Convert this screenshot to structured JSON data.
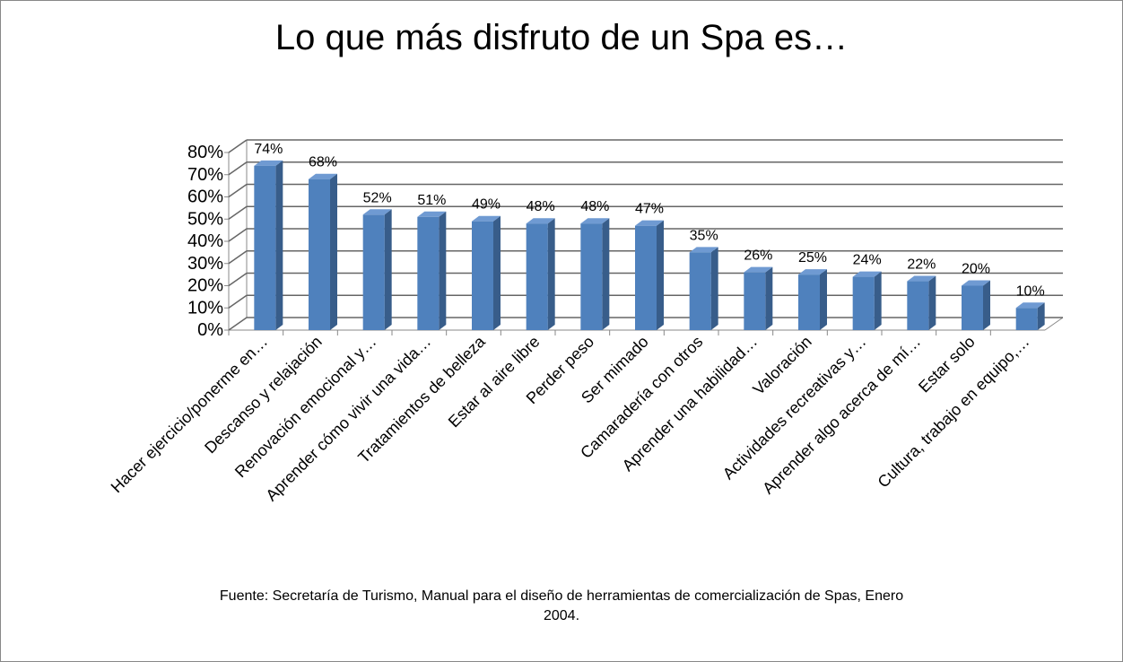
{
  "chart_data": {
    "type": "bar",
    "title": "Lo que más disfruto de un Spa es…",
    "categories": [
      "Hacer ejercicio/ponerme en…",
      "Descanso y relajación",
      "Renovación emocional y…",
      "Aprender cómo vivir una vida…",
      "Tratamientos de belleza",
      "Estar al aire libre",
      "Perder peso",
      "Ser mimado",
      "Camaradería con otros",
      "Aprender una habilidad…",
      "Valoración",
      "Actividades recreativas y…",
      "Aprender algo acerca de mí…",
      "Estar solo",
      "Cultura, trabajo en equipo,…"
    ],
    "values": [
      74,
      68,
      52,
      51,
      49,
      48,
      48,
      47,
      35,
      26,
      25,
      24,
      22,
      20,
      10
    ],
    "value_labels": [
      "74%",
      "68%",
      "52%",
      "51%",
      "49%",
      "48%",
      "48%",
      "47%",
      "35%",
      "26%",
      "25%",
      "24%",
      "22%",
      "20%",
      "10%"
    ],
    "color": "#4f81bd",
    "ylim": [
      0,
      80
    ],
    "yticks": [
      {
        "value": 0,
        "label": "0%"
      },
      {
        "value": 10,
        "label": "10%"
      },
      {
        "value": 20,
        "label": "20%"
      },
      {
        "value": 30,
        "label": "30%"
      },
      {
        "value": 40,
        "label": "40%"
      },
      {
        "value": 50,
        "label": "50%"
      },
      {
        "value": 60,
        "label": "60%"
      },
      {
        "value": 70,
        "label": "70%"
      },
      {
        "value": 80,
        "label": "80%"
      }
    ],
    "grid": true,
    "source": "Fuente: Secretaría de Turismo, Manual para el diseño de herramientas de comercialización de Spas, Enero 2004."
  }
}
